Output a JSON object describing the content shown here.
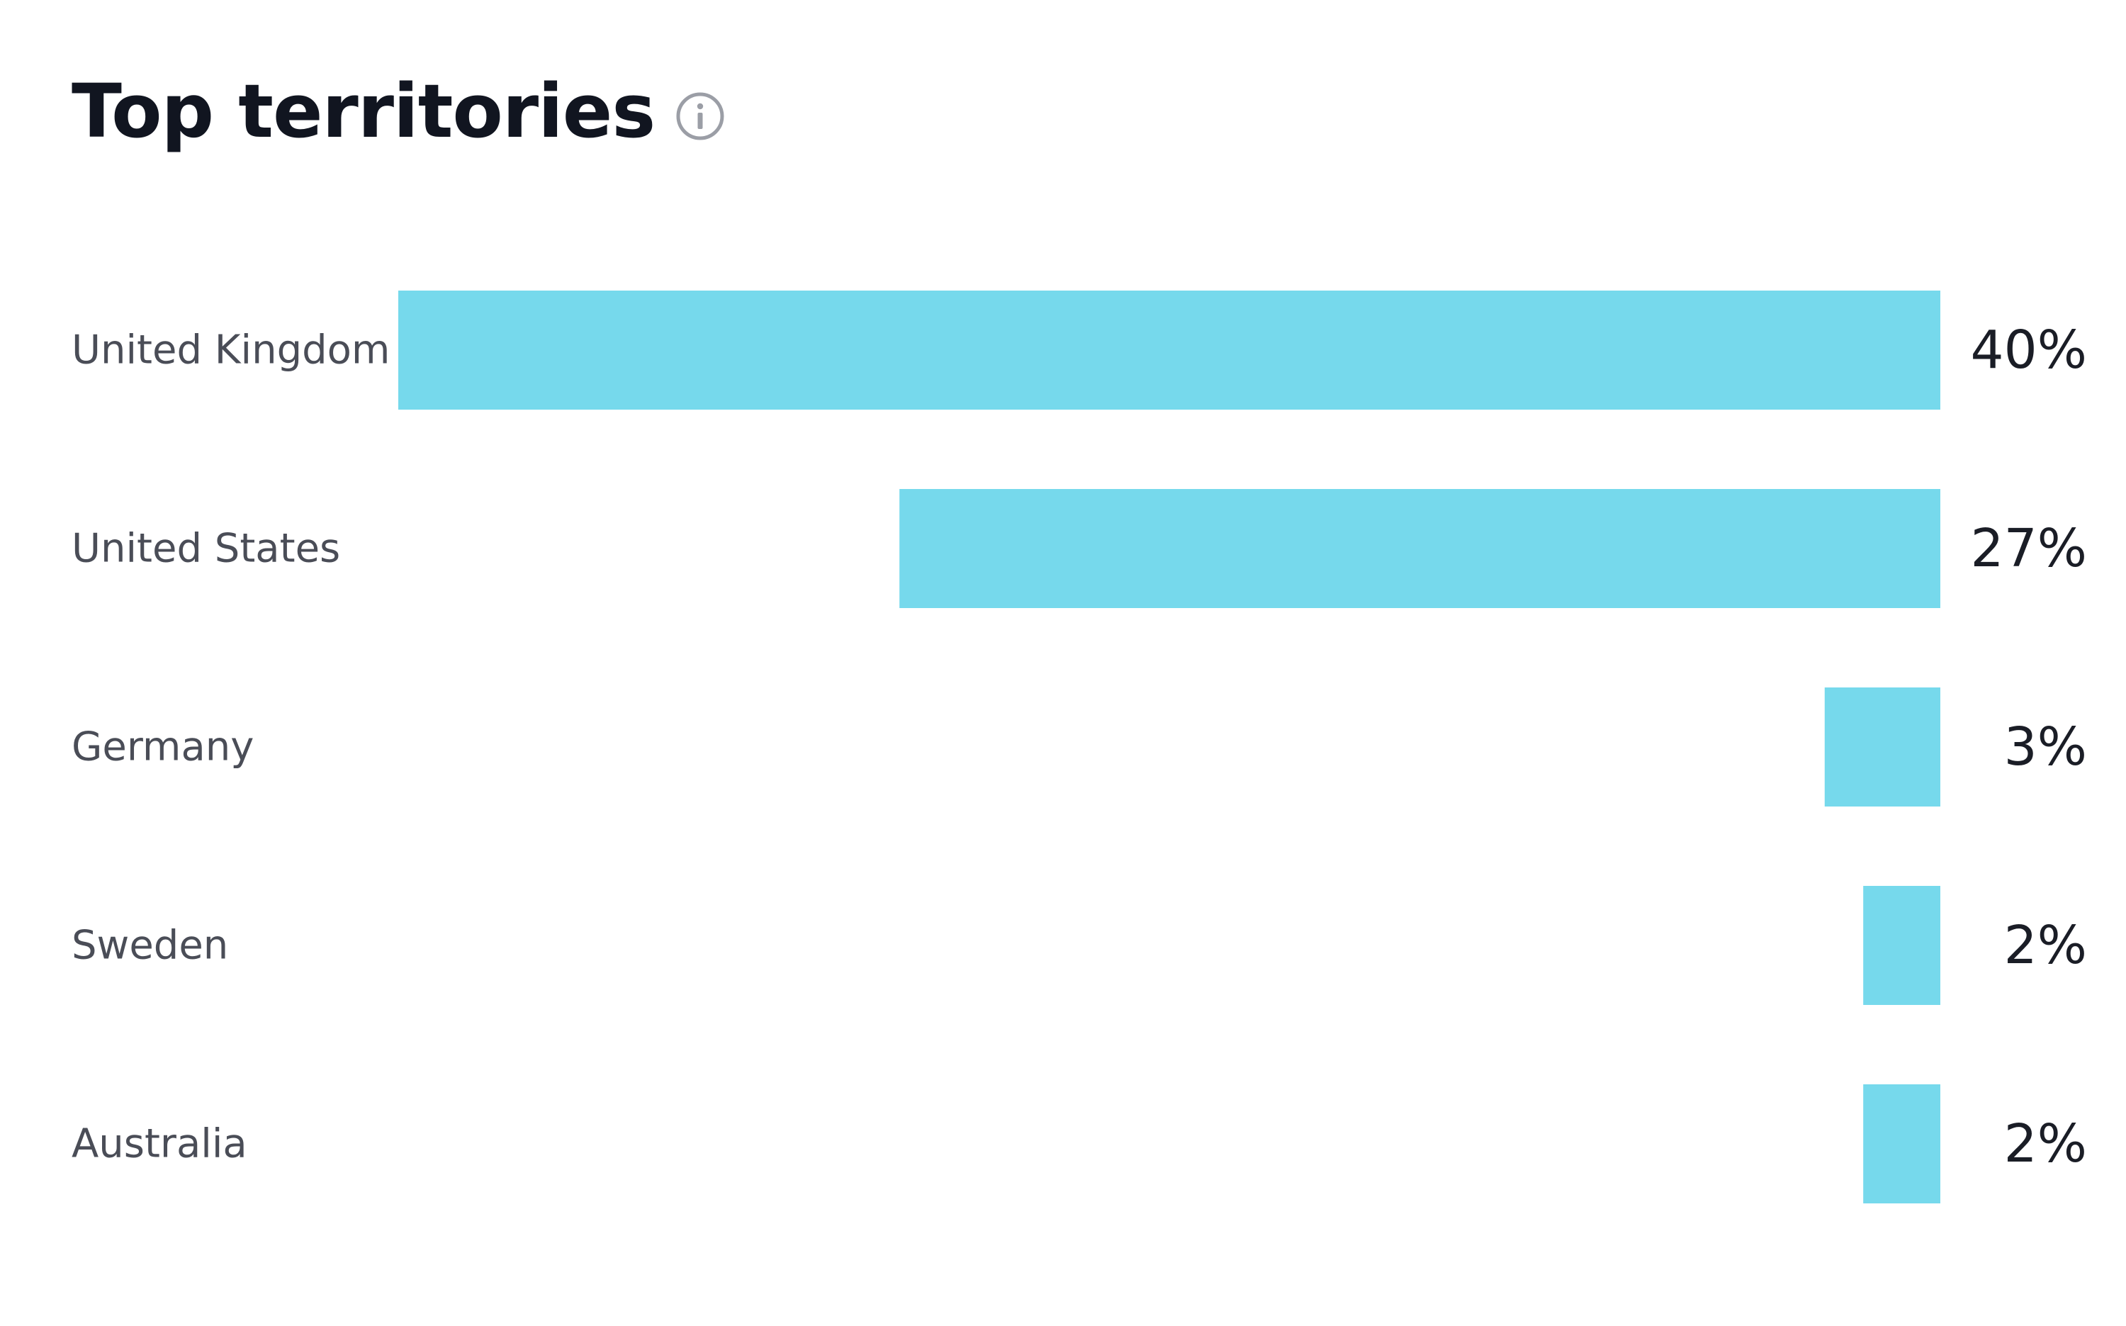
{
  "header": {
    "title": "Top territories",
    "info_icon": "info-icon"
  },
  "colors": {
    "bar": "#76d9ec",
    "title": "#111520",
    "label": "#4a4d57",
    "value": "#1a1d26",
    "icon": "#9b9ea6"
  },
  "chart_data": {
    "type": "bar",
    "orientation": "horizontal",
    "title": "Top territories",
    "categories": [
      "United Kingdom",
      "United States",
      "Germany",
      "Sweden",
      "Australia"
    ],
    "values": [
      40,
      27,
      3,
      2,
      2
    ],
    "value_labels": [
      "40%",
      "27%",
      "3%",
      "2%",
      "2%"
    ],
    "unit": "%",
    "xlabel": "",
    "ylabel": "",
    "grid": false,
    "legend": "none",
    "bar_alignment": "right"
  }
}
